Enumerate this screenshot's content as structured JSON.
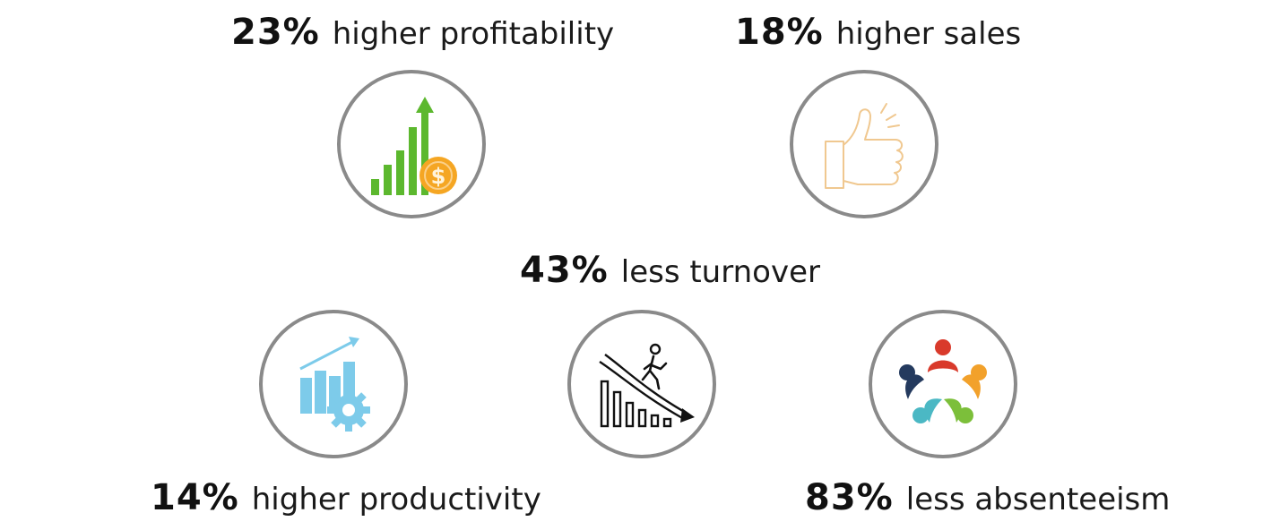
{
  "stats": {
    "profitability": {
      "pct": "23%",
      "label": "higher profitability",
      "icon": "growth-chart-dollar-icon"
    },
    "sales": {
      "pct": "18%",
      "label": "higher sales",
      "icon": "thumbs-up-icon"
    },
    "turnover": {
      "pct": "43%",
      "label": "less turnover",
      "icon": "declining-chart-person-icon"
    },
    "productivity": {
      "pct": "14%",
      "label": "higher productivity",
      "icon": "chart-gear-icon"
    },
    "absenteeism": {
      "pct": "83%",
      "label": "less absenteeism",
      "icon": "team-circle-icon"
    }
  },
  "colors": {
    "circle_border": "#8a8a8a",
    "growth_green": "#5cb82e",
    "coin_orange": "#f5a623",
    "thumb_outline": "#f0c890",
    "productivity_blue": "#7dcbea",
    "turnover_black": "#111111"
  }
}
